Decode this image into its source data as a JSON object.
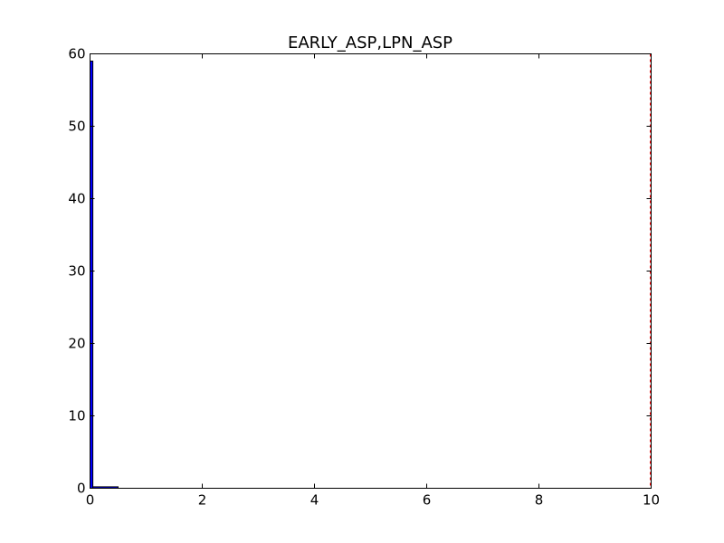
{
  "chart_data": {
    "type": "bar",
    "title": "EARLY_ASP,LPN_ASP",
    "xlabel": "",
    "ylabel": "",
    "xlim": [
      0,
      10
    ],
    "ylim": [
      0,
      60
    ],
    "x_ticks": [
      "0",
      "2",
      "4",
      "6",
      "8",
      "10"
    ],
    "y_ticks": [
      "0",
      "10",
      "20",
      "30",
      "40",
      "50",
      "60"
    ],
    "grid": false,
    "legend": "none",
    "bars": [
      {
        "x_start": 0,
        "x_end": 0.05,
        "value": 59
      },
      {
        "x_start": 0.05,
        "x_end": 0.5,
        "value": 0.2
      }
    ],
    "bar_color": "#0000ff",
    "bar_edge_color": "#000000",
    "reference_line": {
      "x": 10,
      "color": "#ff0000",
      "style": "dashed"
    }
  }
}
